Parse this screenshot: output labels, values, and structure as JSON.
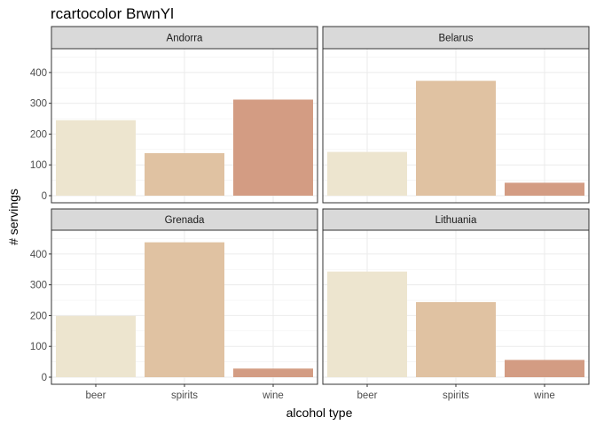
{
  "chart_data": {
    "type": "bar",
    "title": "rcartocolor BrwnYl",
    "xlabel": "alcohol type",
    "ylabel": "# servings",
    "categories": [
      "beer",
      "spirits",
      "wine"
    ],
    "ylim": [
      0,
      460
    ],
    "yticks": [
      0,
      100,
      200,
      300,
      400
    ],
    "grid": true,
    "colors": {
      "beer": "#EDE5CF",
      "spirits": "#E0C2A2",
      "wine": "#D39C83"
    },
    "panels": [
      {
        "name": "Andorra",
        "values": [
          245,
          138,
          312
        ]
      },
      {
        "name": "Belarus",
        "values": [
          142,
          373,
          42
        ]
      },
      {
        "name": "Grenada",
        "values": [
          199,
          438,
          28
        ]
      },
      {
        "name": "Lithuania",
        "values": [
          343,
          244,
          56
        ]
      }
    ]
  }
}
